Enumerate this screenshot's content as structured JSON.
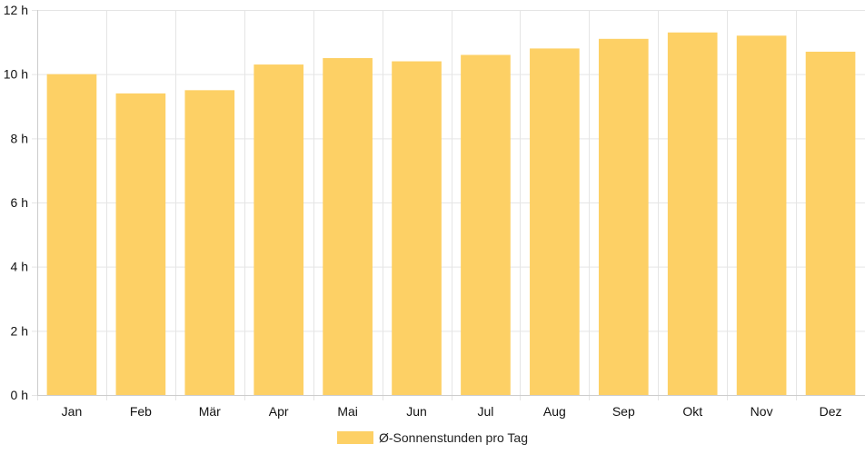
{
  "chart_data": {
    "type": "bar",
    "categories": [
      "Jan",
      "Feb",
      "Mär",
      "Apr",
      "Mai",
      "Jun",
      "Jul",
      "Aug",
      "Sep",
      "Okt",
      "Nov",
      "Dez"
    ],
    "series": [
      {
        "name": "Ø-Sonnenstunden pro Tag",
        "values": [
          10.0,
          9.4,
          9.5,
          10.3,
          10.5,
          10.4,
          10.6,
          10.8,
          11.1,
          11.3,
          11.2,
          10.7
        ]
      }
    ],
    "ylim": [
      0,
      12
    ],
    "yticks": [
      0,
      2,
      4,
      6,
      8,
      10,
      12
    ],
    "y_tick_suffix": " h",
    "grid": true,
    "legend_position": "bottom",
    "colors": {
      "bar": "#fdd065",
      "grid": "#e5e5e5",
      "axis": "#cccccc"
    }
  }
}
